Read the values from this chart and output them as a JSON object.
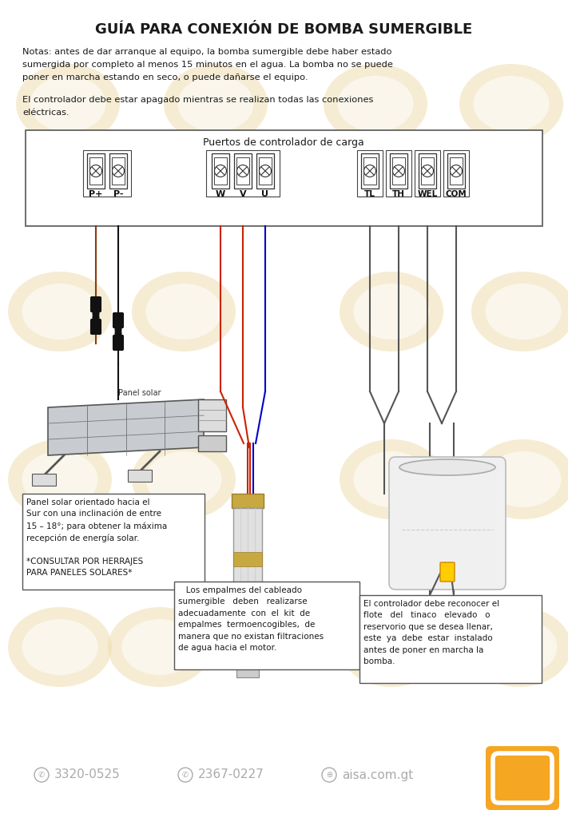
{
  "title": "GUÍA PARA CONEXIÓN DE BOMBA SUMERGIBLE",
  "bg_color": "#FFFFFF",
  "watermark_color": "#F0DDB0",
  "text_color": "#1A1A1A",
  "gray_color": "#AAAAAA",
  "orange_color": "#F5A623",
  "note1_line1": "Notas: antes de dar arranque al equipo, la bomba sumergible debe haber estado",
  "note1_line2": "sumergida por completo al menos 15 minutos en el agua. La bomba no se puede",
  "note1_line3": "poner en marcha estando en seco, o puede dañarse el equipo.",
  "note2_line1": "El controlador debe estar apagado mientras se realizan todas las conexiones",
  "note2_line2": "eléctricas.",
  "controller_label": "Puertos de controlador de carga",
  "solar_panel_note": "Panel solar orientado hacia el\nSur con una inclinación de entre\n15 – 18°; para obtener la máxima\nrecepción de energía solar.\n\n*CONSULTAR POR HERRAJES\nPARA PANELES SOLARES*",
  "cable_note": "   Los empalmes del cableado\nsumergible   deben   realizarse\nadecuadamente  con  el  kit  de\nempalmes  termoencogibles,  de\nmanera que no existan filtraciones\nde agua hacia el motor.",
  "float_note": "El controlador debe reconocer el\nflote   del   tinaco   elevado   o\nreservorio que se desea llenar,\neste  ya  debe  estar  instalado\nantes de poner en marcha la\nbomba.",
  "footer_phone1": "3320-0525",
  "footer_phone2": "2367-0227",
  "footer_web": "aisa.com.gt",
  "red_color": "#CC2200",
  "brown_color": "#8B4513",
  "blue_color": "#0000CC",
  "dark_color": "#333333",
  "panel_solar_label": "Panel solar"
}
